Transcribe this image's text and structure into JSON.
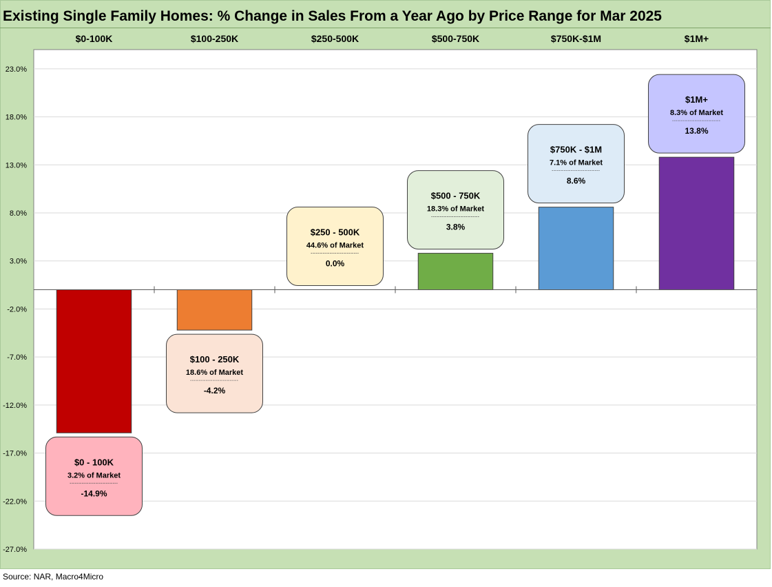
{
  "title": "Existing Single Family Homes: % Change in Sales From a Year Ago by Price Range for Mar 2025",
  "source": "Source: NAR, Macro4Micro",
  "chart_data": {
    "type": "bar",
    "title": "Existing Single Family Homes: % Change in Sales From a Year Ago by Price Range for Mar 2025",
    "categories": [
      "$0-100K",
      "$100-250K",
      "$250-500K",
      "$500-750K",
      "$750K-$1M",
      "$1M+"
    ],
    "values": [
      -14.9,
      -4.2,
      0.0,
      3.8,
      8.6,
      13.8
    ],
    "ylim": [
      -27,
      25
    ],
    "yticks": [
      23,
      18,
      13,
      8,
      3,
      -2,
      -7,
      -12,
      -17,
      -22,
      -27
    ],
    "ytick_labels": [
      "23.0%",
      "18.0%",
      "13.0%",
      "8.0%",
      "3.0%",
      "-2.0%",
      "-7.0%",
      "-12.0%",
      "-17.0%",
      "-22.0%",
      "-27.0%"
    ],
    "grid": true,
    "bar_colors": [
      "#c00000",
      "#ed7d31",
      "#ffc000",
      "#70ad47",
      "#5b9bd5",
      "#7030a0"
    ],
    "callouts": [
      {
        "title": "$0 - 100K",
        "share": "3.2% of Market",
        "value": "-14.9%",
        "fill": "#ffb3bd"
      },
      {
        "title": "$100 - 250K",
        "share": "18.6% of Market",
        "value": "-4.2%",
        "fill": "#fbe3d5"
      },
      {
        "title": "$250 - 500K",
        "share": "44.6% of Market",
        "value": "0.0%",
        "fill": "#fff2cc"
      },
      {
        "title": "$500 - 750K",
        "share": "18.3% of Market",
        "value": "3.8%",
        "fill": "#e2efda"
      },
      {
        "title": "$750K - $1M",
        "share": "7.1% of Market",
        "value": "8.6%",
        "fill": "#ddebf7"
      },
      {
        "title": "$1M+",
        "share": "8.3% of Market",
        "value": "13.8%",
        "fill": "#c5c5ff"
      }
    ]
  }
}
